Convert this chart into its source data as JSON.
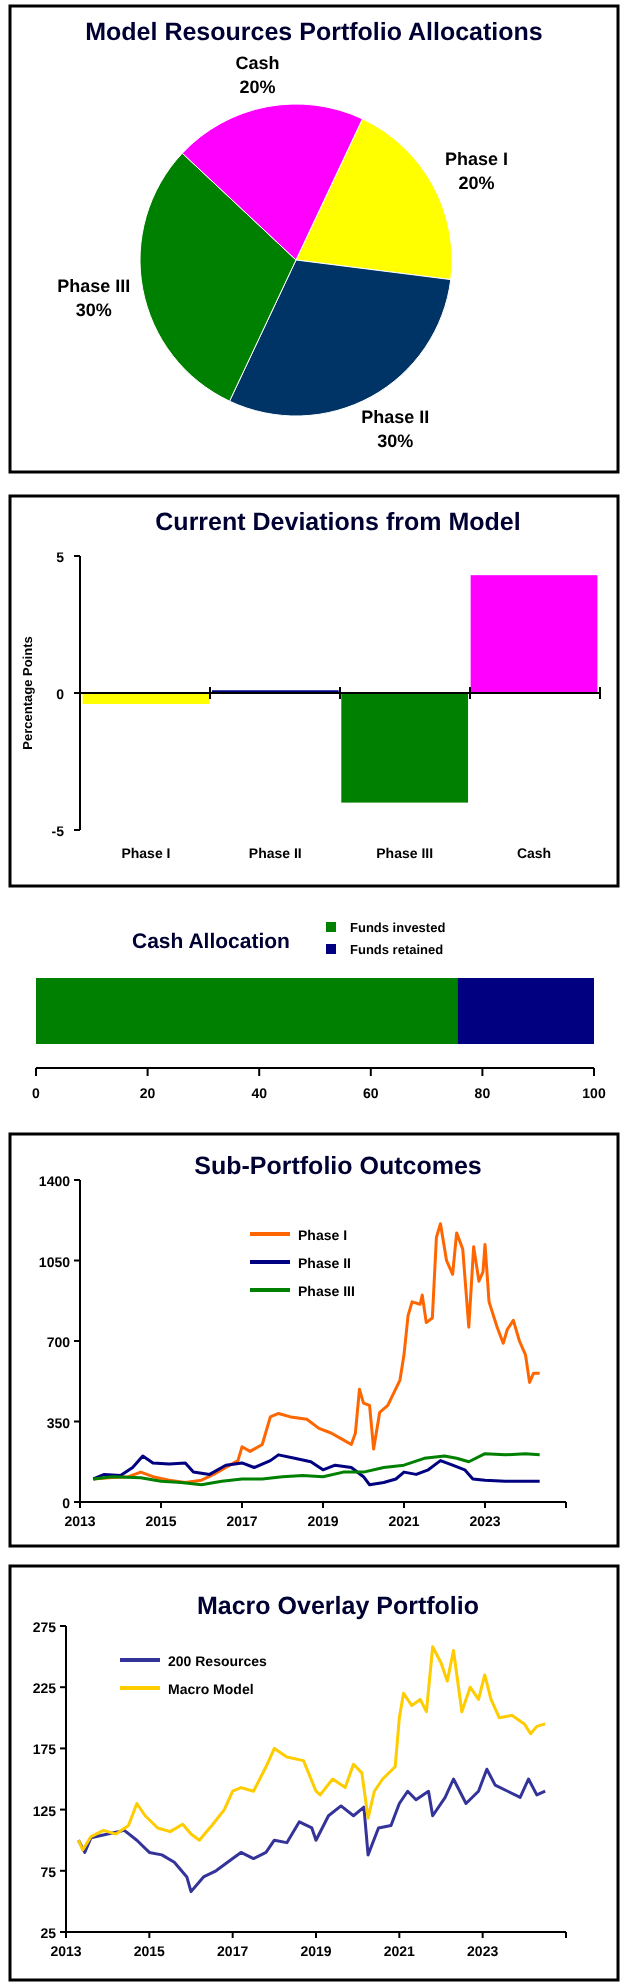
{
  "chart_data": [
    {
      "type": "pie",
      "title": "Model Resources Portfolio Allocations",
      "categories": [
        "Phase I",
        "Phase II",
        "Phase III",
        "Cash"
      ],
      "values": [
        20,
        30,
        30,
        20
      ],
      "colors": [
        "#ffff00",
        "#003366",
        "#008000",
        "#ff00ff"
      ],
      "value_labels": [
        "20%",
        "30%",
        "30%",
        "20%"
      ]
    },
    {
      "type": "bar",
      "title": "Current Deviations from Model",
      "ylabel": "Percentage Points",
      "categories": [
        "Phase I",
        "Phase II",
        "Phase III",
        "Cash"
      ],
      "values": [
        -0.4,
        0.1,
        -4,
        4.3
      ],
      "colors": [
        "#ffff00",
        "#000080",
        "#008000",
        "#ff00ff"
      ],
      "ylim": [
        -5,
        5
      ],
      "yticks": [
        -5,
        0,
        5
      ]
    },
    {
      "type": "bar",
      "title": "Cash Allocation",
      "orientation": "horizontal",
      "stacked": true,
      "categories": [
        null
      ],
      "series": [
        {
          "name": "Funds invested",
          "color": "#008000",
          "values": [
            75.5
          ]
        },
        {
          "name": "Funds retained",
          "color": "#000080",
          "values": [
            24.5
          ]
        }
      ],
      "xlim": [
        0,
        100
      ],
      "xticks": [
        0,
        20,
        40,
        60,
        80,
        100
      ],
      "legend": "top right",
      "tick_labels": "x"
    },
    {
      "type": "line",
      "title": "Sub-Portfolio Outcomes",
      "xlim": [
        2013,
        2025
      ],
      "xticks": [
        2013,
        2015,
        2017,
        2019,
        2021,
        2023
      ],
      "ylim": [
        0,
        1400
      ],
      "yticks": [
        0,
        350,
        700,
        1050,
        1400
      ],
      "legend": "top",
      "series": [
        {
          "name": "Phase I",
          "color": "#ff6600",
          "x": [
            2013.33,
            2013.7,
            2014.2,
            2014.5,
            2014.8,
            2015.2,
            2015.6,
            2016.0,
            2016.3,
            2016.6,
            2016.9,
            2017.0,
            2017.2,
            2017.5,
            2017.7,
            2017.9,
            2018.2,
            2018.6,
            2018.9,
            2019.2,
            2019.5,
            2019.7,
            2019.8,
            2019.9,
            2020.0,
            2020.15,
            2020.25,
            2020.4,
            2020.6,
            2020.9,
            2021.0,
            2021.1,
            2021.2,
            2021.4,
            2021.45,
            2021.55,
            2021.7,
            2021.8,
            2021.9,
            2022.05,
            2022.2,
            2022.3,
            2022.45,
            2022.6,
            2022.72,
            2022.85,
            2022.95,
            2023.0,
            2023.1,
            2023.3,
            2023.45,
            2023.55,
            2023.7,
            2023.85,
            2024.0,
            2024.1,
            2024.2,
            2024.35
          ],
          "values": [
            100,
            105,
            110,
            130,
            110,
            95,
            85,
            95,
            120,
            150,
            180,
            240,
            220,
            250,
            370,
            385,
            370,
            360,
            320,
            300,
            270,
            250,
            300,
            490,
            430,
            420,
            230,
            390,
            420,
            530,
            640,
            810,
            870,
            860,
            900,
            780,
            800,
            1150,
            1210,
            1050,
            990,
            1170,
            1100,
            760,
            1110,
            960,
            1000,
            1120,
            870,
            760,
            690,
            750,
            790,
            700,
            640,
            520,
            560,
            560
          ]
        },
        {
          "name": "Phase II",
          "color": "#000080",
          "x": [
            2013.33,
            2013.6,
            2014.0,
            2014.3,
            2014.55,
            2014.8,
            2015.2,
            2015.6,
            2015.8,
            2016.2,
            2016.6,
            2017.0,
            2017.3,
            2017.7,
            2017.9,
            2018.3,
            2018.7,
            2019.0,
            2019.3,
            2019.7,
            2020.0,
            2020.15,
            2020.5,
            2020.8,
            2021.0,
            2021.3,
            2021.6,
            2021.9,
            2022.2,
            2022.5,
            2022.7,
            2023.0,
            2023.5,
            2024.0,
            2024.35
          ],
          "values": [
            100,
            120,
            115,
            150,
            200,
            170,
            165,
            170,
            130,
            120,
            160,
            170,
            150,
            180,
            205,
            190,
            175,
            140,
            160,
            150,
            110,
            75,
            85,
            100,
            130,
            120,
            140,
            180,
            160,
            140,
            100,
            95,
            90,
            90,
            90
          ]
        },
        {
          "name": "Phase III",
          "color": "#008000",
          "x": [
            2013.33,
            2013.8,
            2014.5,
            2015,
            2015.5,
            2016,
            2016.5,
            2017,
            2017.5,
            2018,
            2018.5,
            2019,
            2019.5,
            2020,
            2020.5,
            2021,
            2021.5,
            2022,
            2022.3,
            2022.6,
            2023,
            2023.5,
            2024,
            2024.35
          ],
          "values": [
            100,
            110,
            105,
            90,
            85,
            75,
            90,
            100,
            100,
            110,
            115,
            110,
            130,
            130,
            150,
            160,
            190,
            200,
            190,
            175,
            210,
            205,
            210,
            205
          ]
        }
      ]
    },
    {
      "type": "line",
      "title": "Macro Overlay Portfolio",
      "xlim": [
        2013,
        2025
      ],
      "xticks": [
        2013,
        2015,
        2017,
        2019,
        2021,
        2023
      ],
      "ylim": [
        25,
        275
      ],
      "yticks": [
        25,
        75,
        125,
        175,
        225,
        275
      ],
      "legend": "top left",
      "series": [
        {
          "name": "200 Resources",
          "color": "#333399",
          "x": [
            2013.3,
            2013.45,
            2013.6,
            2014.0,
            2014.4,
            2014.7,
            2015.0,
            2015.3,
            2015.6,
            2015.9,
            2016.0,
            2016.3,
            2016.6,
            2017.0,
            2017.2,
            2017.5,
            2017.8,
            2018.0,
            2018.3,
            2018.6,
            2018.9,
            2019.0,
            2019.3,
            2019.6,
            2019.9,
            2020.15,
            2020.25,
            2020.5,
            2020.8,
            2021.0,
            2021.2,
            2021.4,
            2021.7,
            2021.8,
            2022.1,
            2022.3,
            2022.6,
            2022.9,
            2023.1,
            2023.3,
            2023.6,
            2023.9,
            2024.1,
            2024.3,
            2024.5
          ],
          "values": [
            100,
            90,
            102,
            105,
            108,
            100,
            90,
            88,
            82,
            70,
            58,
            70,
            75,
            85,
            90,
            85,
            90,
            100,
            98,
            115,
            110,
            100,
            120,
            128,
            120,
            127,
            88,
            110,
            112,
            130,
            140,
            133,
            140,
            120,
            135,
            150,
            130,
            140,
            158,
            145,
            140,
            135,
            150,
            137,
            140
          ]
        },
        {
          "name": "Macro Model",
          "color": "#ffcc00",
          "x": [
            2013.3,
            2013.4,
            2013.6,
            2013.9,
            2014.2,
            2014.5,
            2014.7,
            2014.9,
            2015.2,
            2015.5,
            2015.8,
            2016.0,
            2016.2,
            2016.5,
            2016.8,
            2017.0,
            2017.2,
            2017.5,
            2017.8,
            2018.0,
            2018.3,
            2018.7,
            2019.0,
            2019.1,
            2019.4,
            2019.7,
            2019.9,
            2020.1,
            2020.25,
            2020.4,
            2020.6,
            2020.9,
            2021.0,
            2021.1,
            2021.3,
            2021.5,
            2021.65,
            2021.8,
            2022.0,
            2022.15,
            2022.3,
            2022.5,
            2022.7,
            2022.9,
            2023.05,
            2023.2,
            2023.4,
            2023.7,
            2024.0,
            2024.15,
            2024.3,
            2024.5
          ],
          "values": [
            100,
            92,
            103,
            108,
            105,
            112,
            130,
            120,
            110,
            107,
            113,
            105,
            100,
            112,
            125,
            140,
            143,
            140,
            160,
            175,
            168,
            165,
            140,
            137,
            150,
            143,
            162,
            155,
            118,
            140,
            150,
            160,
            200,
            220,
            210,
            215,
            205,
            258,
            245,
            230,
            255,
            205,
            225,
            215,
            235,
            215,
            200,
            202,
            195,
            187,
            193,
            195
          ]
        }
      ]
    }
  ]
}
